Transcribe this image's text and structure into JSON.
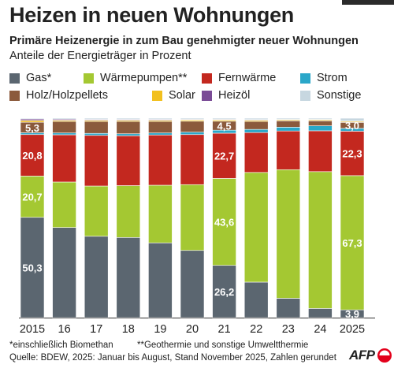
{
  "title": "Heizen in neuen Wohnungen",
  "subtitle": "Primäre Heizenergie in zum Bau genehmigter neuer Wohnungen",
  "subtitle2": "Anteile der Energieträger in Prozent",
  "footnote_left": "*einschließlich Biomethan",
  "footnote_right": "**Geothermie und sonstige Umweltthermie",
  "source": "Quelle: BDEW, 2025: Januar bis August, Stand November 2025, Zahlen gerundet",
  "logo_text": "AFP",
  "chart_data": {
    "type": "bar",
    "stacked": true,
    "categories": [
      "2015",
      "16",
      "17",
      "18",
      "19",
      "20",
      "21",
      "22",
      "23",
      "24",
      "2025"
    ],
    "ylim": [
      0,
      100
    ],
    "legend_placement": "top",
    "series": [
      {
        "name": "Gas*",
        "key": "gas",
        "color": "#5b6670",
        "values": [
          50.3,
          45.2,
          40.8,
          40.2,
          37.5,
          33.7,
          26.2,
          17.8,
          9.7,
          4.6,
          3.9
        ],
        "labels": [
          "50,3",
          "",
          "",
          "",
          "",
          "",
          "26,2",
          "",
          "",
          "",
          "3,9"
        ]
      },
      {
        "name": "Wärmepumpen**",
        "key": "waermepumpen",
        "color": "#a4c832",
        "values": [
          20.7,
          22.8,
          25.2,
          26.0,
          28.9,
          33.0,
          43.6,
          55.0,
          64.5,
          68.6,
          67.3
        ],
        "labels": [
          "20,7",
          "",
          "",
          "",
          "",
          "",
          "43,6",
          "",
          "",
          "",
          "67,3"
        ]
      },
      {
        "name": "Fernwärme",
        "key": "fernwaerme",
        "color": "#c3281f",
        "values": [
          20.8,
          23.7,
          25.4,
          25.0,
          25.2,
          25.1,
          22.7,
          20.0,
          19.4,
          20.5,
          22.3
        ],
        "labels": [
          "20,8",
          "",
          "",
          "",
          "",
          "",
          "22,7",
          "",
          "",
          "",
          "22,3"
        ]
      },
      {
        "name": "Strom",
        "key": "strom",
        "color": "#2aa7c9",
        "values": [
          0.9,
          0.9,
          1.0,
          1.0,
          1.0,
          1.2,
          1.5,
          1.6,
          1.9,
          2.5,
          1.4
        ],
        "labels": [
          "",
          "",
          "",
          "",
          "",
          "",
          "",
          "",
          "",
          "",
          ""
        ]
      },
      {
        "name": "Holz/Holzpellets",
        "key": "holz",
        "color": "#8b5a3c",
        "values": [
          5.3,
          5.8,
          6.0,
          6.2,
          5.8,
          5.5,
          4.5,
          4.0,
          3.2,
          2.5,
          3.0
        ],
        "labels": [
          "5,3",
          "",
          "",
          "",
          "",
          "",
          "4,5",
          "",
          "",
          "",
          "3,0"
        ]
      },
      {
        "name": "Solar",
        "key": "solar",
        "color": "#f2c01e",
        "values": [
          0.9,
          0.6,
          0.6,
          0.6,
          0.6,
          0.6,
          0.6,
          0.6,
          0.5,
          0.5,
          0.5
        ],
        "labels": [
          "",
          "",
          "",
          "",
          "",
          "",
          "",
          "",
          "",
          "",
          ""
        ]
      },
      {
        "name": "Heizöl",
        "key": "heizoel",
        "color": "#7a4b96",
        "values": [
          0.7,
          0.5,
          0.4,
          0.4,
          0.4,
          0.3,
          0.3,
          0.3,
          0.2,
          0.2,
          0.2
        ],
        "labels": [
          "",
          "",
          "",
          "",
          "",
          "",
          "",
          "",
          "",
          "",
          ""
        ]
      },
      {
        "name": "Sonstige",
        "key": "sonstige",
        "color": "#c7d7e0",
        "values": [
          0.4,
          0.5,
          0.6,
          0.6,
          0.6,
          0.6,
          0.6,
          0.7,
          0.6,
          0.6,
          1.4
        ],
        "labels": [
          "",
          "",
          "",
          "",
          "",
          "",
          "",
          "",
          "",
          "",
          ""
        ]
      }
    ]
  }
}
